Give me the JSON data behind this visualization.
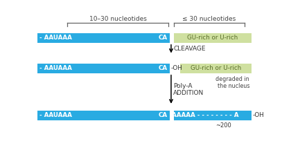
{
  "fig_width": 4.07,
  "fig_height": 2.14,
  "dpi": 100,
  "bg_color": "#ffffff",
  "blue_color": "#29abe2",
  "green_color": "#cfe0a0",
  "brace1_label": "10–30 nucleotides",
  "brace2_label": "≤ 30 nucleotides",
  "row1_blue_label": "- AAUAAA",
  "row1_ca_label": "CA",
  "row1_green_label": "GU-rich or U-rich",
  "cleavage_label": "CLEAVAGE",
  "row2_blue_label": "- AAUAAA",
  "row2_ca_label": "CA",
  "row2_oh_label": "-OH",
  "row2_green_label": "GU-rich or U-rich",
  "degraded_label": "degraded in\nthe nucleus",
  "polya_label": "Poly-A\nADDITION",
  "row3_blue_label": "- AAUAAA",
  "row3_ca_label": "CA",
  "row3_poly_label": "AAAAA - - - - - - - - A",
  "row3_oh_label": "-OH",
  "row3_200_label": "~200"
}
